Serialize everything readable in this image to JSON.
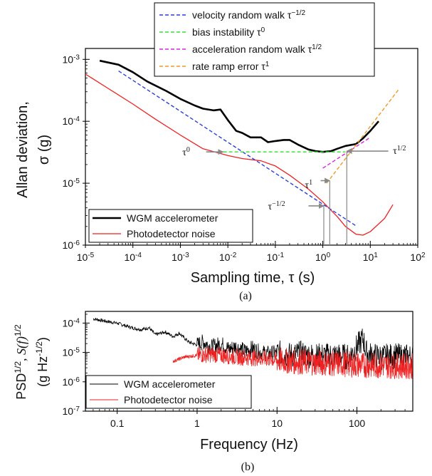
{
  "chart_data": [
    {
      "panel": "(a)",
      "type": "line",
      "xlabel": "Sampling time, τ (s)",
      "ylabel_line1": "Allan deviation,",
      "ylabel_line2": "σ (g)",
      "xscale": "log",
      "yscale": "log",
      "xlim": [
        1e-05,
        100
      ],
      "ylim": [
        1e-06,
        0.0015
      ],
      "xtick_exponents": [
        -5,
        -4,
        -3,
        -2,
        -1,
        0,
        1,
        2
      ],
      "ytick_exponents": [
        -6,
        -5,
        -4,
        -3
      ],
      "grid": false,
      "legend_bottom_position": "bottom-left",
      "legend_top_position": "top-right",
      "series": [
        {
          "name": "WGM accelerometer",
          "color": "#000000",
          "style": "solid",
          "x": [
            2e-05,
            5e-05,
            0.0001,
            0.0002,
            0.0005,
            0.001,
            0.002,
            0.003,
            0.005,
            0.007,
            0.01,
            0.015,
            0.02,
            0.03,
            0.05,
            0.07,
            0.1,
            0.15,
            0.2,
            0.3,
            0.5,
            0.7,
            1,
            1.5,
            2,
            3,
            5,
            7,
            10,
            15
          ],
          "values": [
            0.00095,
            0.00082,
            0.00062,
            0.00044,
            0.00031,
            0.00023,
            0.00018,
            0.00016,
            0.00015,
            0.000155,
            0.000105,
            7e-05,
            6.5e-05,
            5.5e-05,
            5.5e-05,
            4.6e-05,
            4.8e-05,
            5e-05,
            5e-05,
            4.2e-05,
            3.5e-05,
            3.3e-05,
            3.2e-05,
            3.3e-05,
            3.6e-05,
            4e-05,
            4.3e-05,
            5.3e-05,
            7e-05,
            0.0001
          ]
        },
        {
          "name": "Photodetector noise",
          "color": "#ee2222",
          "style": "solid",
          "x": [
            1e-05,
            3e-05,
            0.0001,
            0.0003,
            0.001,
            0.003,
            0.01,
            0.02,
            0.05,
            0.1,
            0.2,
            0.5,
            1,
            2,
            3,
            5,
            7,
            10,
            20,
            30
          ],
          "values": [
            0.00058,
            0.00034,
            0.00019,
            0.000108,
            6e-05,
            3.6e-05,
            2.8e-05,
            2.5e-05,
            2.3e-05,
            1.9e-05,
            1.35e-05,
            8e-06,
            5e-06,
            2.9e-06,
            2e-06,
            1.5e-06,
            1.45e-06,
            1.65e-06,
            2.7e-06,
            4.5e-06
          ]
        },
        {
          "name": "velocity random walk τ^−1/2",
          "color": "#2a3fdc",
          "style": "dashed",
          "x": [
            5e-05,
            5
          ],
          "values": [
            0.00065,
            2.05e-06
          ]
        },
        {
          "name": "bias instability τ^0",
          "color": "#33dd33",
          "style": "dashed",
          "x": [
            0.008,
            3
          ],
          "values": [
            3.2e-05,
            3.2e-05
          ]
        },
        {
          "name": "acceleration random walk τ^1/2",
          "color": "#dd22dd",
          "style": "dashed",
          "x": [
            1,
            10
          ],
          "values": [
            1.75e-05,
            5.5e-05
          ]
        },
        {
          "name": "rate ramp error τ^1",
          "color": "#ee9922",
          "style": "dashed",
          "x": [
            1.2,
            40
          ],
          "values": [
            1e-05,
            0.00033
          ]
        }
      ],
      "annotations": [
        {
          "base": "τ",
          "sup": "0",
          "text_x": 0.0011,
          "text_y": 3.2e-05,
          "arrow_from_x": 0.0035,
          "arrow_to_x": 0.008,
          "arrow_y": 3.2e-05
        },
        {
          "base": "τ",
          "sup": "−1/2",
          "text_x": 0.07,
          "text_y": 4.3e-06,
          "arrow_from_x": 0.5,
          "arrow_to_x": 1.05,
          "arrow_y": 4.3e-06,
          "drop_x": 1.05
        },
        {
          "base": "τ",
          "sup": "1",
          "text_x": 0.42,
          "text_y": 9.5e-06,
          "arrow_from_x": 0.9,
          "arrow_to_x": 1.4,
          "arrow_y": 1.1e-05,
          "drop_x": 1.4
        },
        {
          "base": "τ",
          "sup": "1/2",
          "text_x": 30,
          "text_y": 3.4e-05,
          "arrow_from_x": 24,
          "arrow_to_x": 3.2,
          "arrow_y": 3.3e-05,
          "drop_x": 3.2
        }
      ]
    },
    {
      "panel": "(b)",
      "type": "line",
      "xlabel": "Frequency (Hz)",
      "ylabel_line1": "PSD",
      "ylabel_line1_sup": "1/2",
      "ylabel_line1_rest": ", S(f)",
      "ylabel_line1_rest_sup": "1/2",
      "ylabel_line2": "(g Hz",
      "ylabel_line2_sup": "-1/2",
      "ylabel_line2_end": ")",
      "xscale": "log",
      "yscale": "log",
      "xlim": [
        0.04,
        500
      ],
      "ylim": [
        1e-07,
        0.00025
      ],
      "xticks": [
        0.1,
        1,
        10,
        100
      ],
      "xtick_labels": [
        "0.1",
        "1",
        "10",
        "100"
      ],
      "ytick_exponents": [
        -7,
        -6,
        -5,
        -4
      ],
      "grid": false,
      "legend_position": "bottom-left",
      "series": [
        {
          "name": "WGM accelerometer",
          "color": "#000000",
          "x": [
            0.05,
            0.08,
            0.1,
            0.15,
            0.2,
            0.25,
            0.3,
            0.4,
            0.5,
            0.6,
            0.7,
            0.8,
            1,
            1.2,
            1.5,
            2,
            2.5,
            3,
            4,
            5,
            6,
            8,
            10,
            15,
            20,
            30,
            50,
            80,
            120,
            130,
            150,
            200,
            300,
            500
          ],
          "values": [
            0.00014,
            0.00011,
            0.0001,
            7e-05,
            6e-05,
            7e-05,
            4e-05,
            5e-05,
            3.5e-05,
            4.5e-05,
            3e-05,
            2.2e-05,
            1.8e-05,
            2.3e-05,
            1.5e-05,
            2e-05,
            1.3e-05,
            1.6e-05,
            1.1e-05,
            1.4e-05,
            1e-05,
            9e-06,
            9.5e-06,
            8e-06,
            9e-06,
            7.5e-06,
            8e-06,
            7e-06,
            3e-05,
            1e-05,
            8e-06,
            7e-06,
            7.5e-06,
            7e-06
          ]
        },
        {
          "name": "Photodetector noise",
          "color": "#ee2222",
          "x": [
            0.5,
            0.7,
            1,
            1.5,
            2,
            3,
            5,
            8,
            10,
            15,
            20,
            30,
            50,
            80,
            100,
            150,
            200,
            300,
            500
          ],
          "values": [
            5e-06,
            7e-06,
            8e-06,
            8.5e-06,
            8e-06,
            7e-06,
            6.5e-06,
            6e-06,
            5.5e-06,
            5e-06,
            4.8e-06,
            4.5e-06,
            4.2e-06,
            4e-06,
            3.8e-06,
            3.6e-06,
            3.6e-06,
            3.5e-06,
            3.4e-06
          ]
        }
      ]
    }
  ],
  "labels": {
    "panel_a": "(a)",
    "panel_b": "(b)",
    "tick_base": "10"
  }
}
